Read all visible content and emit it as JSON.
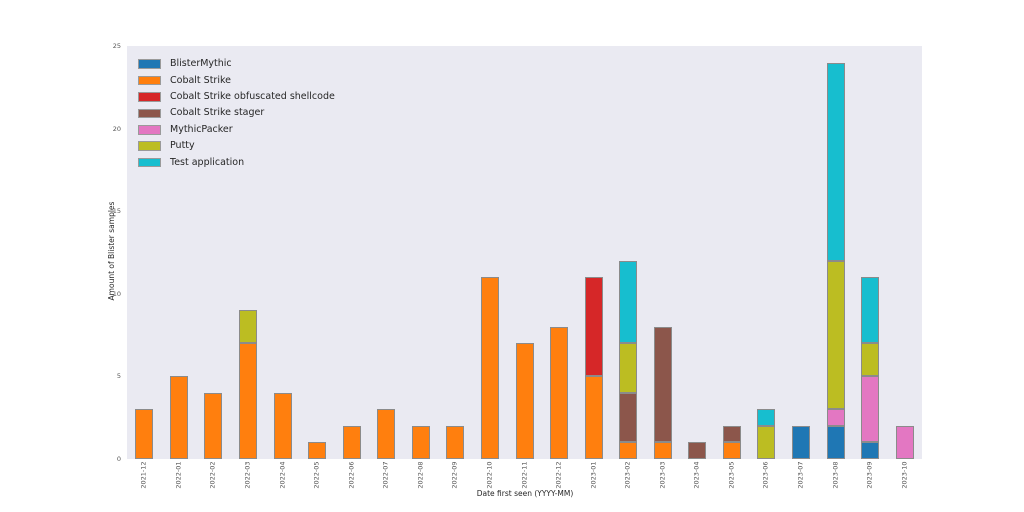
{
  "figure": {
    "background": "#ffffff",
    "plot_background": "#eaeaf2",
    "bar_edge_color": "#8b8b8b",
    "tick_color": "#555555",
    "text_color": "#262626"
  },
  "chart_data": {
    "type": "bar",
    "stacked": true,
    "title": "",
    "xlabel": "Date first seen (YYYY-MM)",
    "ylabel": "Amount of Blister samples",
    "ylim": [
      0,
      25
    ],
    "yticks": [
      0,
      5,
      10,
      15,
      20,
      25
    ],
    "grid": false,
    "legend_position": "upper left",
    "categories": [
      "2021-12",
      "2022-01",
      "2022-02",
      "2022-03",
      "2022-04",
      "2022-05",
      "2022-06",
      "2022-07",
      "2022-08",
      "2022-09",
      "2022-10",
      "2022-11",
      "2022-12",
      "2023-01",
      "2023-02",
      "2023-03",
      "2023-04",
      "2023-05",
      "2023-06",
      "2023-07",
      "2023-08",
      "2023-09",
      "2023-10"
    ],
    "series": [
      {
        "name": "BlisterMythic",
        "color": "#1f77b4",
        "values": [
          0,
          0,
          0,
          0,
          0,
          0,
          0,
          0,
          0,
          0,
          0,
          0,
          0,
          0,
          0,
          0,
          0,
          0,
          0,
          2,
          2,
          1,
          0
        ]
      },
      {
        "name": "Cobalt Strike",
        "color": "#ff7f0e",
        "values": [
          3,
          5,
          4,
          7,
          4,
          1,
          2,
          3,
          2,
          2,
          11,
          7,
          8,
          5,
          1,
          1,
          0,
          1,
          0,
          0,
          0,
          0,
          0
        ]
      },
      {
        "name": "Cobalt Strike obfuscated shellcode",
        "color": "#d62728",
        "values": [
          0,
          0,
          0,
          0,
          0,
          0,
          0,
          0,
          0,
          0,
          0,
          0,
          0,
          6,
          0,
          0,
          0,
          0,
          0,
          0,
          0,
          0,
          0
        ]
      },
      {
        "name": "Cobalt Strike stager",
        "color": "#8c564b",
        "values": [
          0,
          0,
          0,
          0,
          0,
          0,
          0,
          0,
          0,
          0,
          0,
          0,
          0,
          0,
          3,
          7,
          1,
          1,
          0,
          0,
          0,
          0,
          0
        ]
      },
      {
        "name": "MythicPacker",
        "color": "#e377c2",
        "values": [
          0,
          0,
          0,
          0,
          0,
          0,
          0,
          0,
          0,
          0,
          0,
          0,
          0,
          0,
          0,
          0,
          0,
          0,
          0,
          0,
          1,
          4,
          2
        ]
      },
      {
        "name": "Putty",
        "color": "#bcbd22",
        "values": [
          0,
          0,
          0,
          2,
          0,
          0,
          0,
          0,
          0,
          0,
          0,
          0,
          0,
          0,
          3,
          0,
          0,
          0,
          2,
          0,
          9,
          2,
          0
        ]
      },
      {
        "name": "Test application",
        "color": "#17becf",
        "values": [
          0,
          0,
          0,
          0,
          0,
          0,
          0,
          0,
          0,
          0,
          0,
          0,
          0,
          0,
          5,
          0,
          0,
          0,
          1,
          0,
          12,
          4,
          0
        ]
      }
    ]
  }
}
